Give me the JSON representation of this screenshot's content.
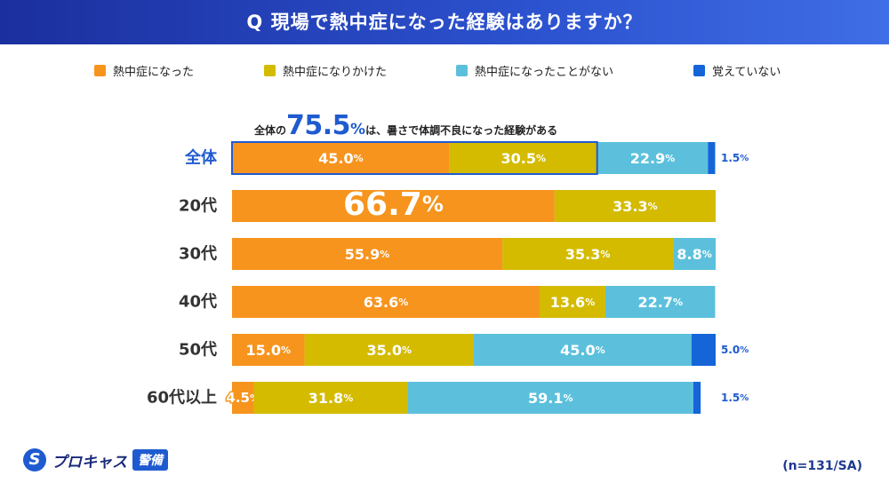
{
  "header": {
    "title": "Q 現場で熱中症になった経験はありますか？"
  },
  "legend": [
    {
      "label": "熱中症になった",
      "color": "#f7941d"
    },
    {
      "label": "熱中症になりかけた",
      "color": "#d4bb00"
    },
    {
      "label": "熱中症になったことがない",
      "color": "#5cc0dc"
    },
    {
      "label": "覚えていない",
      "color": "#1565d8"
    }
  ],
  "callout": {
    "prefix": "全体の",
    "value": "75.5",
    "percent": "%",
    "suffix": "は、暑さで体調不良になった経験がある"
  },
  "chart_data": {
    "type": "bar",
    "orientation": "horizontal",
    "stacked": true,
    "categories": [
      "全体",
      "20代",
      "30代",
      "40代",
      "50代",
      "60代以上"
    ],
    "series": [
      {
        "name": "熱中症になった",
        "values": [
          45.0,
          66.7,
          55.9,
          63.6,
          15.0,
          4.5
        ]
      },
      {
        "name": "熱中症になりかけた",
        "values": [
          30.5,
          33.3,
          35.3,
          13.6,
          35.0,
          31.8
        ]
      },
      {
        "name": "熱中症になったことがない",
        "values": [
          22.9,
          0,
          8.8,
          22.7,
          45.0,
          59.1
        ]
      },
      {
        "name": "覚えていない",
        "values": [
          1.5,
          0,
          0,
          0,
          5.0,
          1.5
        ]
      }
    ],
    "labels": [
      [
        "45.0",
        "30.5",
        "22.9",
        "1.5"
      ],
      [
        "66.7",
        "33.3",
        "",
        ""
      ],
      [
        "55.9",
        "35.3",
        "8.8",
        ""
      ],
      [
        "63.6",
        "13.6",
        "22.7",
        ""
      ],
      [
        "15.0",
        "35.0",
        "45.0",
        "5.0"
      ],
      [
        "4.5",
        "31.8",
        "59.1",
        "1.5"
      ]
    ],
    "percent_symbol": "%",
    "xlim": [
      0,
      100
    ],
    "highlight_category": "全体",
    "highlight_color": "#1f5bd0"
  },
  "logo": {
    "mark": "S",
    "name": "プロキャス",
    "badge": "警備"
  },
  "note": "(n=131/SA)"
}
